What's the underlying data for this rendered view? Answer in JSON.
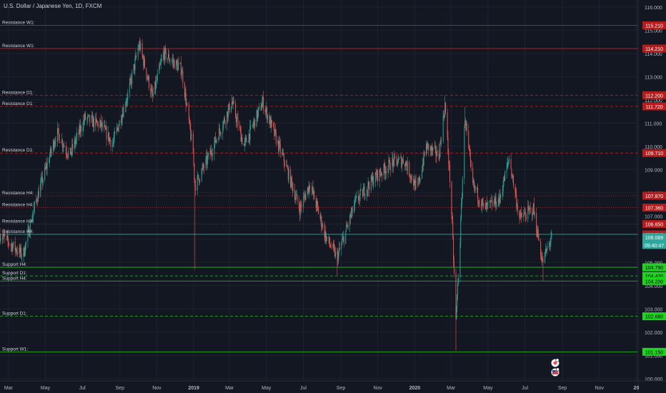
{
  "title": "U.S. Dollar / Japanese Yen, 1D, FXCM",
  "colors": {
    "background": "#131722",
    "grid": "#1e2230",
    "text": "#b2b5be",
    "up": "#26a69a",
    "down": "#ef5350",
    "resistance": "#d11a1a",
    "support": "#22c522",
    "current": "#2ea79c"
  },
  "chart_data": {
    "type": "candlestick",
    "symbol": "U.S. Dollar / Japanese Yen",
    "interval": "1D",
    "source": "FXCM",
    "ylim": [
      99.9,
      116.3
    ],
    "y_ticks": [
      {
        "value": 116.0,
        "label": "116.000"
      },
      {
        "value": 115.0,
        "label": "115.000"
      },
      {
        "value": 114.0,
        "label": "114.000"
      },
      {
        "value": 113.0,
        "label": "113.000"
      },
      {
        "value": 112.0,
        "label": "112.000"
      },
      {
        "value": 111.0,
        "label": "111.000"
      },
      {
        "value": 110.0,
        "label": "110.000"
      },
      {
        "value": 109.0,
        "label": "109.000"
      },
      {
        "value": 108.0,
        "label": "108.000"
      },
      {
        "value": 107.0,
        "label": "107.000"
      },
      {
        "value": 106.0,
        "label": "106.000"
      },
      {
        "value": 105.0,
        "label": "105.000"
      },
      {
        "value": 104.0,
        "label": "104.000"
      },
      {
        "value": 103.0,
        "label": "103.000"
      },
      {
        "value": 102.0,
        "label": "102.000"
      },
      {
        "value": 101.0,
        "label": "101.000"
      },
      {
        "value": 100.0,
        "label": "100.000"
      }
    ],
    "x_ticks": [
      {
        "date": "2018-03-01",
        "label": "Mar",
        "bold": false
      },
      {
        "date": "2018-05-01",
        "label": "May",
        "bold": false
      },
      {
        "date": "2018-07-01",
        "label": "Jul",
        "bold": false
      },
      {
        "date": "2018-09-01",
        "label": "Sep",
        "bold": false
      },
      {
        "date": "2018-11-01",
        "label": "Nov",
        "bold": false
      },
      {
        "date": "2019-01-01",
        "label": "2019",
        "bold": true
      },
      {
        "date": "2019-03-01",
        "label": "Mar",
        "bold": false
      },
      {
        "date": "2019-05-01",
        "label": "May",
        "bold": false
      },
      {
        "date": "2019-07-01",
        "label": "Jul",
        "bold": false
      },
      {
        "date": "2019-09-01",
        "label": "Sep",
        "bold": false
      },
      {
        "date": "2019-11-01",
        "label": "Nov",
        "bold": false
      },
      {
        "date": "2020-01-01",
        "label": "2020",
        "bold": true
      },
      {
        "date": "2020-03-01",
        "label": "Mar",
        "bold": false
      },
      {
        "date": "2020-05-01",
        "label": "May",
        "bold": false
      },
      {
        "date": "2020-07-01",
        "label": "Jul",
        "bold": false
      },
      {
        "date": "2020-09-01",
        "label": "Sep",
        "bold": false
      },
      {
        "date": "2020-11-01",
        "label": "Nov",
        "bold": false
      },
      {
        "date": "2021-01-01",
        "label": "20",
        "bold": true
      }
    ],
    "price_path": [
      {
        "date": "2018-02-15",
        "price": 106.2
      },
      {
        "date": "2018-03-25",
        "price": 105.3
      },
      {
        "date": "2018-04-15",
        "price": 107.6
      },
      {
        "date": "2018-05-20",
        "price": 110.6
      },
      {
        "date": "2018-06-10",
        "price": 109.6
      },
      {
        "date": "2018-07-05",
        "price": 111.2
      },
      {
        "date": "2018-08-01",
        "price": 110.9
      },
      {
        "date": "2018-08-20",
        "price": 110.1
      },
      {
        "date": "2018-09-15",
        "price": 112.3
      },
      {
        "date": "2018-10-03",
        "price": 114.4
      },
      {
        "date": "2018-10-25",
        "price": 112.1
      },
      {
        "date": "2018-11-12",
        "price": 114.0
      },
      {
        "date": "2018-12-12",
        "price": 113.3
      },
      {
        "date": "2018-12-31",
        "price": 109.7
      },
      {
        "date": "2019-01-03",
        "price": 108.3
      },
      {
        "date": "2019-01-25",
        "price": 109.5
      },
      {
        "date": "2019-03-05",
        "price": 111.9
      },
      {
        "date": "2019-03-25",
        "price": 110.0
      },
      {
        "date": "2019-04-25",
        "price": 111.9
      },
      {
        "date": "2019-05-30",
        "price": 109.4
      },
      {
        "date": "2019-06-25",
        "price": 107.3
      },
      {
        "date": "2019-07-12",
        "price": 108.4
      },
      {
        "date": "2019-08-07",
        "price": 106.1
      },
      {
        "date": "2019-08-26",
        "price": 105.2
      },
      {
        "date": "2019-09-25",
        "price": 107.6
      },
      {
        "date": "2019-10-25",
        "price": 108.6
      },
      {
        "date": "2019-11-25",
        "price": 109.3
      },
      {
        "date": "2019-12-15",
        "price": 109.4
      },
      {
        "date": "2020-01-05",
        "price": 108.1
      },
      {
        "date": "2020-01-20",
        "price": 110.0
      },
      {
        "date": "2020-02-10",
        "price": 109.6
      },
      {
        "date": "2020-02-20",
        "price": 111.8
      },
      {
        "date": "2020-03-01",
        "price": 107.8
      },
      {
        "date": "2020-03-09",
        "price": 102.5
      },
      {
        "date": "2020-03-16",
        "price": 106.0
      },
      {
        "date": "2020-03-24",
        "price": 111.3
      },
      {
        "date": "2020-04-05",
        "price": 108.4
      },
      {
        "date": "2020-04-25",
        "price": 107.3
      },
      {
        "date": "2020-05-20",
        "price": 107.7
      },
      {
        "date": "2020-06-05",
        "price": 109.5
      },
      {
        "date": "2020-06-22",
        "price": 106.9
      },
      {
        "date": "2020-07-15",
        "price": 107.3
      },
      {
        "date": "2020-07-30",
        "price": 105.0
      },
      {
        "date": "2020-08-14",
        "price": 106.1
      }
    ],
    "spikes": [
      {
        "date": "2019-01-03",
        "low": 104.7
      },
      {
        "date": "2019-08-26",
        "low": 104.45
      },
      {
        "date": "2020-03-09",
        "low": 101.2
      },
      {
        "date": "2020-07-31",
        "low": 104.2
      },
      {
        "date": "2020-03-24",
        "high": 111.7
      },
      {
        "date": "2020-02-20",
        "high": 112.2
      },
      {
        "date": "2018-10-03",
        "high": 114.55
      }
    ],
    "current_price": {
      "value": 106.089,
      "label": "106.089",
      "countdown": "09:40:47"
    }
  },
  "levels": [
    {
      "label": "Resistance W1:",
      "value": 115.21,
      "value_label": "115.210",
      "kind": "resistance",
      "style": "solid"
    },
    {
      "label": "Resistance W1:",
      "value": 114.21,
      "value_label": "114.210",
      "kind": "resistance",
      "style": "solid"
    },
    {
      "label": "Resistance D1:",
      "value": 112.2,
      "value_label": "112.200",
      "kind": "resistance",
      "style": "dashed"
    },
    {
      "label": "Resistance D1:",
      "value": 111.72,
      "value_label": "111.720",
      "kind": "resistance",
      "style": "dashed"
    },
    {
      "label": "Resistance D1:",
      "value": 109.71,
      "value_label": "109.710",
      "kind": "resistance",
      "style": "dashed"
    },
    {
      "label": "Resistance H4:",
      "value": 107.87,
      "value_label": "107.870",
      "kind": "resistance",
      "style": "dotted"
    },
    {
      "label": "Resistance H4:",
      "value": 107.36,
      "value_label": "107.360",
      "kind": "resistance",
      "style": "dotted"
    },
    {
      "label": "Resistance H4:",
      "value": 106.65,
      "value_label": "106.650",
      "kind": "resistance",
      "style": "dotted"
    },
    {
      "label": "Resistance H4:",
      "value": 106.21,
      "value_label": "106.210",
      "kind": "resistance",
      "style": "solid"
    },
    {
      "label": "Support H4:",
      "value": 104.79,
      "value_label": "104.790",
      "kind": "support",
      "style": "solid"
    },
    {
      "label": "Support D1:",
      "value": 104.42,
      "value_label": "104.420",
      "kind": "support",
      "style": "dashed"
    },
    {
      "label": "Support H4:",
      "value": 104.2,
      "value_label": "104.200",
      "kind": "support",
      "style": "solid"
    },
    {
      "label": "Support D1:",
      "value": 102.68,
      "value_label": "102.680",
      "kind": "support",
      "style": "dashed"
    },
    {
      "label": "Support W1:",
      "value": 101.15,
      "value_label": "101.150",
      "kind": "support",
      "style": "solid"
    }
  ],
  "markers": [
    {
      "date": "2020-08-20",
      "icon": "event-flag-icon"
    },
    {
      "date": "2020-08-20",
      "icon": "us-flag-icon"
    }
  ]
}
